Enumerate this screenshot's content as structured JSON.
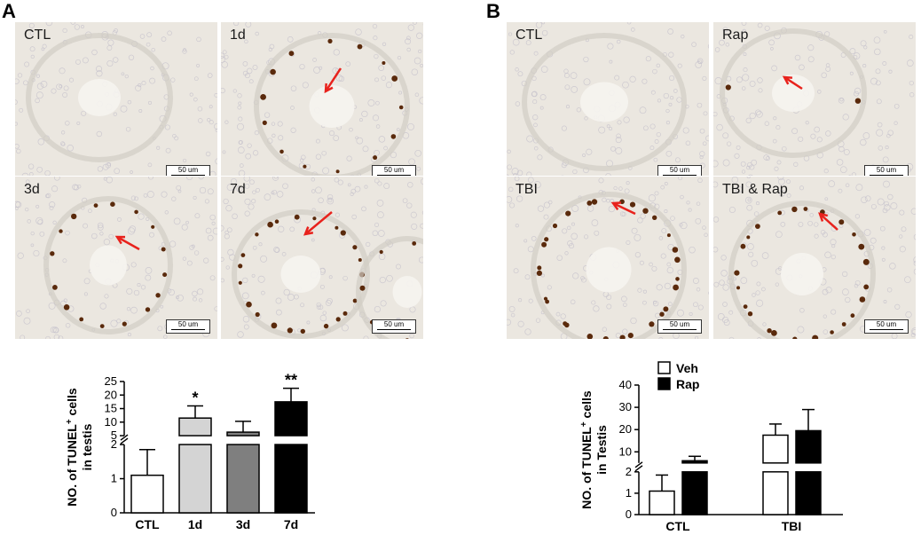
{
  "panels": {
    "a": {
      "letter": "A",
      "images": [
        {
          "label": "CTL",
          "scalebar": "50 um"
        },
        {
          "label": "1d",
          "scalebar": "50 um"
        },
        {
          "label": "3d",
          "scalebar": "50 um"
        },
        {
          "label": "7d",
          "scalebar": "50 um"
        }
      ]
    },
    "b": {
      "letter": "B",
      "images": [
        {
          "label": "CTL",
          "scalebar": "50 um"
        },
        {
          "label": "Rap",
          "scalebar": "50 um"
        },
        {
          "label": "TBI",
          "scalebar": "50 um"
        },
        {
          "label": "TBI & Rap",
          "scalebar": "50 um"
        }
      ]
    }
  },
  "colors": {
    "arrow": "#e8221c",
    "stain": "#5a2a0c",
    "bar_ctl": "#ffffff",
    "bar_1d": "#d4d4d4",
    "bar_3d": "#7f7f7f",
    "bar_7d": "#000000"
  },
  "chart_data": [
    {
      "type": "bar",
      "categories": [
        "CTL",
        "1d",
        "3d",
        "7d"
      ],
      "values": [
        1.1,
        11.5,
        6.3,
        17.5
      ],
      "errors": [
        0.75,
        4.5,
        4.0,
        5.0
      ],
      "significance": [
        "",
        "*",
        "",
        "**"
      ],
      "ylabel_main": "NO. of TUNEL",
      "ylabel_sup": "+",
      "ylabel_rest": " cells",
      "ylabel_line2": "in testis",
      "ylim": [
        0,
        25
      ],
      "axis_break": [
        2,
        5
      ],
      "yticks_lower": [
        "0",
        "1",
        "2"
      ],
      "yticks_upper": [
        "5",
        "10",
        "15",
        "20",
        "25"
      ]
    },
    {
      "type": "bar",
      "categories": [
        "CTL",
        "TBI"
      ],
      "series": [
        {
          "name": "Veh",
          "values": [
            1.1,
            17.5
          ],
          "errors": [
            0.75,
            5.0
          ]
        },
        {
          "name": "Rap",
          "values": [
            6.0,
            19.5
          ],
          "errors": [
            2.0,
            9.5
          ]
        }
      ],
      "ylabel_main": "NO. of TUNEL",
      "ylabel_sup": "+",
      "ylabel_rest": " cells",
      "ylabel_line2": "in Testis",
      "ylim": [
        0,
        40
      ],
      "axis_break": [
        2,
        5
      ],
      "yticks_lower": [
        "0",
        "1",
        "2"
      ],
      "yticks_upper": [
        "10",
        "20",
        "30",
        "40"
      ],
      "legend": "top-left"
    }
  ]
}
